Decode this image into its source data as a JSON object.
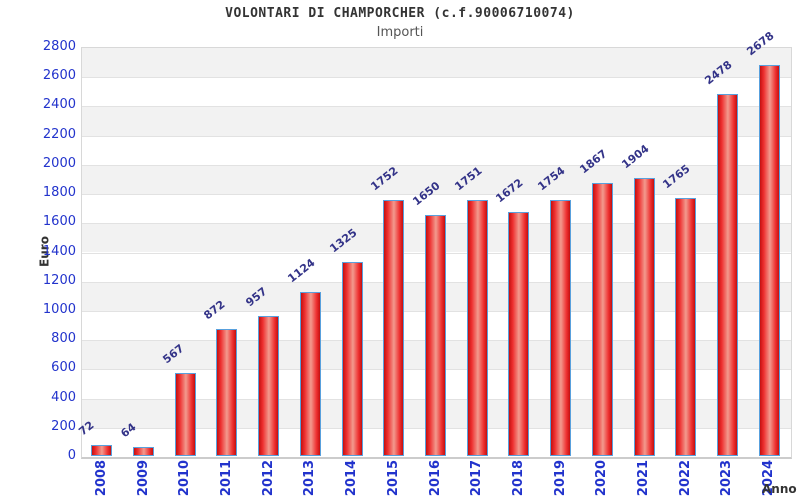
{
  "chart_data": {
    "type": "bar",
    "title": "VOLONTARI DI CHAMPORCHER (c.f.90006710074)",
    "subtitle": "Importi",
    "xlabel": "Anno",
    "ylabel": "Euro",
    "categories": [
      "2008",
      "2009",
      "2010",
      "2011",
      "2012",
      "2013",
      "2014",
      "2015",
      "2016",
      "2017",
      "2018",
      "2019",
      "2020",
      "2021",
      "2022",
      "2023",
      "2024"
    ],
    "values": [
      72,
      64,
      567,
      872,
      957,
      1124,
      1325,
      1752,
      1650,
      1751,
      1672,
      1754,
      1867,
      1904,
      1765,
      2478,
      2678
    ],
    "ylim": [
      0,
      2800
    ],
    "ytick_step": 200,
    "grid": true,
    "legend": "none",
    "colors": {
      "bar_fill_edge": "#c41010",
      "bar_fill_mid": "#f29a8e",
      "bar_border": "#58a0dd",
      "axis_tick_label": "#2233cc",
      "value_label": "#333388",
      "band_gray": "#f2f2f2",
      "band_white": "#ffffff",
      "grid_line": "#e2e2e2",
      "title_color": "#333333",
      "subtitle_color": "#555555"
    }
  }
}
